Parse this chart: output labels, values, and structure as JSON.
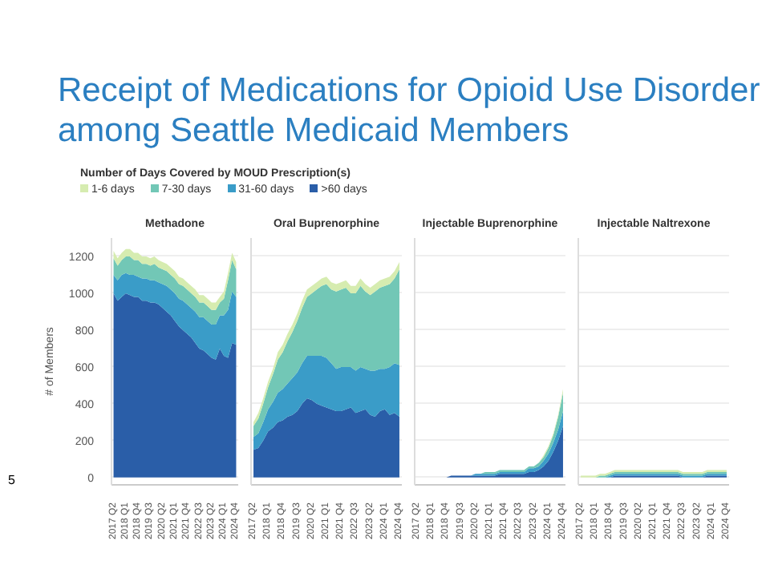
{
  "chart_data": [
    {
      "type": "area",
      "stacked": true,
      "title": "Receipt of Medications for Opioid Use Disorder among Seattle Medicaid Members",
      "subtitle": "Methadone",
      "ylabel": "# of Members",
      "legend_title": "Number of Days Covered by MOUD Prescription(s)",
      "legend": "top",
      "grid": "y",
      "annotations": [
        "5"
      ],
      "categories": [
        "2017 Q2",
        null,
        null,
        "2018 Q1",
        null,
        null,
        "2018 Q4",
        null,
        null,
        "2019 Q3",
        null,
        null,
        "2020 Q2",
        null,
        null,
        "2021 Q1",
        null,
        null,
        "2021 Q4",
        null,
        null,
        "2022 Q3",
        null,
        null,
        "2023 Q2",
        null,
        null,
        "2024 Q1",
        null,
        null,
        "2024 Q4"
      ],
      "ylim": [
        -40,
        1300
      ],
      "yticks": [
        0,
        200,
        400,
        600,
        800,
        1000,
        1200
      ],
      "series": [
        {
          "name": ">60 days",
          "color": "#2a5ea8",
          "values": [
            1000,
            960,
            980,
            1000,
            990,
            980,
            980,
            960,
            960,
            950,
            950,
            940,
            920,
            900,
            880,
            850,
            820,
            800,
            780,
            760,
            730,
            700,
            690,
            670,
            650,
            640,
            700,
            660,
            650,
            730,
            720
          ]
        },
        {
          "name": "31-60 days",
          "color": "#3a9cc8",
          "values": [
            100,
            110,
            120,
            110,
            110,
            120,
            110,
            120,
            120,
            120,
            120,
            120,
            130,
            140,
            140,
            150,
            150,
            160,
            160,
            160,
            170,
            170,
            180,
            180,
            180,
            190,
            180,
            220,
            260,
            280,
            260
          ]
        },
        {
          "name": "7-30 days",
          "color": "#72c7b6",
          "values": [
            90,
            80,
            80,
            90,
            100,
            80,
            90,
            80,
            80,
            80,
            90,
            80,
            80,
            80,
            80,
            80,
            80,
            80,
            80,
            80,
            80,
            80,
            80,
            80,
            80,
            80,
            70,
            90,
            160,
            170,
            150
          ]
        },
        {
          "name": "1-6 days",
          "color": "#d6ecb0",
          "values": [
            40,
            40,
            40,
            40,
            40,
            40,
            40,
            40,
            40,
            40,
            40,
            40,
            40,
            40,
            40,
            40,
            40,
            40,
            40,
            40,
            40,
            40,
            40,
            40,
            40,
            40,
            30,
            40,
            40,
            40,
            40
          ]
        }
      ]
    },
    {
      "type": "area",
      "stacked": true,
      "subtitle": "Oral Buprenorphine",
      "grid": "y",
      "tick_labels": "x",
      "categories": [
        "2017 Q2",
        null,
        null,
        "2018 Q1",
        null,
        null,
        "2018 Q4",
        null,
        null,
        "2019 Q3",
        null,
        null,
        "2020 Q2",
        null,
        null,
        "2021 Q1",
        null,
        null,
        "2021 Q4",
        null,
        null,
        "2022 Q3",
        null,
        null,
        "2023 Q2",
        null,
        null,
        "2024 Q1",
        null,
        null,
        "2024 Q4"
      ],
      "ylim": [
        -40,
        1300
      ],
      "yticks": [
        0,
        200,
        400,
        600,
        800,
        1000,
        1200
      ],
      "series": [
        {
          "color": "#2a5ea8",
          "values": [
            150,
            160,
            200,
            250,
            270,
            300,
            310,
            330,
            340,
            360,
            400,
            430,
            420,
            400,
            390,
            380,
            370,
            360,
            360,
            370,
            380,
            350,
            360,
            370,
            340,
            330,
            360,
            370,
            340,
            350,
            330
          ]
        },
        {
          "color": "#3a9cc8",
          "values": [
            70,
            80,
            100,
            120,
            140,
            160,
            170,
            180,
            200,
            210,
            220,
            230,
            240,
            260,
            270,
            270,
            250,
            230,
            240,
            230,
            220,
            230,
            240,
            220,
            240,
            250,
            230,
            220,
            260,
            270,
            280
          ]
        },
        {
          "color": "#72c7b6",
          "values": [
            60,
            80,
            100,
            120,
            150,
            180,
            200,
            230,
            250,
            280,
            300,
            320,
            340,
            360,
            380,
            400,
            400,
            420,
            420,
            430,
            400,
            420,
            440,
            420,
            410,
            430,
            440,
            450,
            450,
            460,
            520
          ]
        },
        {
          "color": "#d6ecb0",
          "values": [
            20,
            30,
            30,
            30,
            30,
            40,
            40,
            40,
            40,
            40,
            40,
            40,
            40,
            40,
            40,
            40,
            40,
            40,
            40,
            40,
            40,
            40,
            40,
            40,
            40,
            40,
            40,
            40,
            40,
            40,
            40
          ]
        }
      ]
    },
    {
      "type": "area",
      "stacked": true,
      "subtitle": "Injectable Buprenorphine",
      "grid": "y",
      "tick_labels": "x",
      "categories": [
        "2017 Q2",
        null,
        null,
        "2018 Q1",
        null,
        null,
        "2018 Q4",
        null,
        null,
        "2019 Q3",
        null,
        null,
        "2020 Q2",
        null,
        null,
        "2021 Q1",
        null,
        null,
        "2021 Q4",
        null,
        null,
        "2022 Q3",
        null,
        null,
        "2023 Q2",
        null,
        null,
        "2024 Q1",
        null,
        null,
        "2024 Q4"
      ],
      "ylim": [
        -40,
        1300
      ],
      "yticks": [
        0,
        200,
        400,
        600,
        800,
        1000,
        1200
      ],
      "series": [
        {
          "color": "#2a5ea8",
          "values": [
            0,
            0,
            0,
            0,
            0,
            0,
            0,
            10,
            10,
            10,
            10,
            10,
            10,
            10,
            10,
            10,
            10,
            20,
            20,
            20,
            20,
            20,
            20,
            30,
            30,
            40,
            60,
            90,
            140,
            200,
            280
          ]
        },
        {
          "color": "#3a9cc8",
          "values": [
            0,
            0,
            0,
            0,
            0,
            0,
            0,
            0,
            0,
            0,
            0,
            0,
            10,
            10,
            10,
            10,
            10,
            10,
            10,
            10,
            10,
            10,
            10,
            20,
            20,
            20,
            30,
            40,
            50,
            60,
            80
          ]
        },
        {
          "color": "#72c7b6",
          "values": [
            0,
            0,
            0,
            0,
            0,
            0,
            0,
            0,
            0,
            0,
            0,
            0,
            0,
            0,
            10,
            10,
            10,
            10,
            10,
            10,
            10,
            10,
            10,
            10,
            10,
            20,
            20,
            30,
            40,
            70,
            100
          ]
        },
        {
          "color": "#d6ecb0",
          "values": [
            0,
            0,
            0,
            0,
            0,
            0,
            0,
            0,
            0,
            0,
            0,
            0,
            0,
            0,
            0,
            0,
            0,
            0,
            0,
            0,
            0,
            0,
            0,
            0,
            0,
            0,
            10,
            10,
            10,
            10,
            20
          ]
        }
      ]
    },
    {
      "type": "area",
      "stacked": true,
      "subtitle": "Injectable Naltrexone",
      "grid": "y",
      "tick_labels": "x",
      "categories": [
        "2017 Q2",
        null,
        null,
        "2018 Q1",
        null,
        null,
        "2018 Q4",
        null,
        null,
        "2019 Q3",
        null,
        null,
        "2020 Q2",
        null,
        null,
        "2021 Q1",
        null,
        null,
        "2021 Q4",
        null,
        null,
        "2022 Q3",
        null,
        null,
        "2023 Q2",
        null,
        null,
        "2024 Q1",
        null,
        null,
        "2024 Q4"
      ],
      "ylim": [
        -40,
        1300
      ],
      "yticks": [
        0,
        200,
        400,
        600,
        800,
        1000,
        1200
      ],
      "series": [
        {
          "color": "#2a5ea8",
          "values": [
            0,
            0,
            0,
            0,
            0,
            0,
            0,
            10,
            10,
            10,
            10,
            10,
            10,
            10,
            10,
            10,
            10,
            10,
            10,
            10,
            10,
            0,
            0,
            0,
            0,
            0,
            10,
            10,
            10,
            10,
            10
          ]
        },
        {
          "color": "#3a9cc8",
          "values": [
            0,
            0,
            0,
            0,
            0,
            0,
            10,
            10,
            10,
            10,
            10,
            10,
            10,
            10,
            10,
            10,
            10,
            10,
            10,
            10,
            10,
            10,
            10,
            10,
            10,
            10,
            10,
            10,
            10,
            10,
            10
          ]
        },
        {
          "color": "#72c7b6",
          "values": [
            0,
            0,
            0,
            0,
            10,
            10,
            10,
            10,
            10,
            10,
            10,
            10,
            10,
            10,
            10,
            10,
            10,
            10,
            10,
            10,
            10,
            10,
            10,
            10,
            10,
            10,
            10,
            10,
            10,
            10,
            10
          ]
        },
        {
          "color": "#d6ecb0",
          "values": [
            10,
            10,
            10,
            10,
            10,
            10,
            10,
            10,
            10,
            10,
            10,
            10,
            10,
            10,
            10,
            10,
            10,
            10,
            10,
            10,
            10,
            10,
            10,
            10,
            10,
            10,
            10,
            10,
            10,
            10,
            10
          ]
        }
      ]
    }
  ]
}
